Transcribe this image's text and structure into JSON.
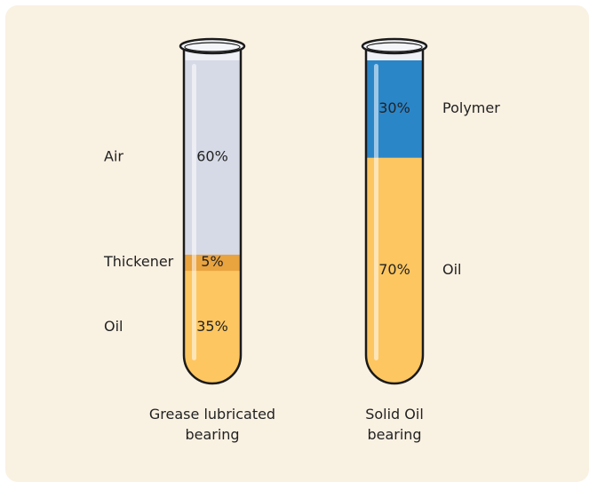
{
  "chart_data": {
    "type": "tube",
    "tubes": [
      {
        "name": "Grease lubricated bearing",
        "segments": [
          {
            "name": "Oil",
            "value": 35,
            "value_label": "35%",
            "color": "#fdc660"
          },
          {
            "name": "Thickener",
            "value": 5,
            "value_label": "5%",
            "color": "#e9a33f"
          },
          {
            "name": "Air",
            "value": 60,
            "value_label": "60%",
            "color": "#d6dae7"
          }
        ]
      },
      {
        "name": "Solid Oil bearing",
        "segments": [
          {
            "name": "Oil",
            "value": 70,
            "value_label": "70%",
            "color": "#fdc660"
          },
          {
            "name": "Polymer",
            "value": 30,
            "value_label": "30%",
            "color": "#2b86c8"
          }
        ]
      }
    ]
  }
}
